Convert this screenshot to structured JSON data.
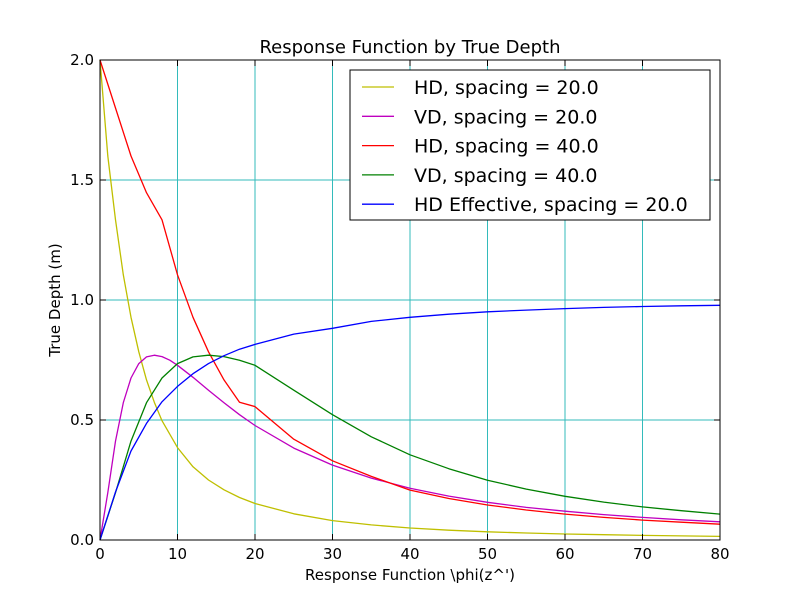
{
  "chart_data": {
    "type": "line",
    "title": "Response Function by True Depth",
    "xlabel": "Response Function \\phi(z^')",
    "ylabel": "True Depth (m)",
    "xlim": [
      0,
      80
    ],
    "ylim": [
      0,
      2.0
    ],
    "xticks": [
      "0",
      "10",
      "20",
      "30",
      "40",
      "50",
      "60",
      "70",
      "80"
    ],
    "yticks": [
      "0.0",
      "0.5",
      "1.0",
      "1.5",
      "2.0"
    ],
    "grid": true,
    "grid_color": "#33bbbb",
    "legend_position": "top-right",
    "series": [
      {
        "name": "HD, spacing = 20.0",
        "color": "#bfbf00",
        "x": [
          0,
          1,
          2,
          3,
          4,
          5,
          6,
          7,
          8,
          10,
          12,
          14,
          16,
          18,
          20,
          25,
          30,
          35,
          40,
          45,
          50,
          55,
          60,
          65,
          70,
          75,
          80
        ],
        "y": [
          2.0,
          1.6,
          1.334,
          1.105,
          0.928,
          0.784,
          0.667,
          0.574,
          0.497,
          0.385,
          0.305,
          0.25,
          0.209,
          0.177,
          0.152,
          0.109,
          0.081,
          0.063,
          0.05,
          0.041,
          0.034,
          0.029,
          0.025,
          0.022,
          0.019,
          0.017,
          0.015
        ]
      },
      {
        "name": "VD, spacing = 20.0",
        "color": "#bf00bf",
        "x": [
          0,
          1,
          2,
          3,
          4,
          5,
          6,
          7,
          8,
          9,
          10,
          12,
          14,
          16,
          18,
          20,
          25,
          30,
          35,
          40,
          45,
          50,
          55,
          60,
          65,
          70,
          75,
          80
        ],
        "y": [
          0.0,
          0.197,
          0.412,
          0.572,
          0.675,
          0.735,
          0.763,
          0.77,
          0.764,
          0.749,
          0.728,
          0.678,
          0.624,
          0.572,
          0.522,
          0.477,
          0.383,
          0.312,
          0.258,
          0.216,
          0.183,
          0.157,
          0.136,
          0.12,
          0.106,
          0.094,
          0.084,
          0.076
        ]
      },
      {
        "name": "HD, spacing = 40.0",
        "color": "#ff0000",
        "x": [
          0,
          2,
          4,
          6,
          8,
          10,
          12,
          14,
          16,
          18,
          20,
          25,
          30,
          35,
          40,
          45,
          50,
          55,
          60,
          65,
          70,
          75,
          80
        ],
        "y": [
          2.0,
          1.8,
          1.6,
          1.447,
          1.334,
          1.105,
          0.928,
          0.784,
          0.667,
          0.574,
          0.556,
          0.42,
          0.33,
          0.265,
          0.208,
          0.173,
          0.146,
          0.125,
          0.108,
          0.094,
          0.083,
          0.074,
          0.066
        ]
      },
      {
        "name": "VD, spacing = 40.0",
        "color": "#008000",
        "x": [
          0,
          2,
          4,
          6,
          8,
          10,
          12,
          14,
          16,
          18,
          20,
          25,
          30,
          35,
          40,
          45,
          50,
          55,
          60,
          65,
          70,
          75,
          80
        ],
        "y": [
          0.0,
          0.197,
          0.412,
          0.572,
          0.675,
          0.735,
          0.763,
          0.77,
          0.764,
          0.749,
          0.728,
          0.624,
          0.522,
          0.43,
          0.355,
          0.297,
          0.249,
          0.212,
          0.182,
          0.158,
          0.138,
          0.122,
          0.108
        ]
      },
      {
        "name": "HD Effective, spacing = 20.0",
        "color": "#0000ff",
        "x": [
          0,
          2,
          4,
          6,
          8,
          10,
          12,
          14,
          16,
          18,
          20,
          25,
          30,
          35,
          40,
          45,
          50,
          55,
          60,
          65,
          70,
          75,
          80
        ],
        "y": [
          0.0,
          0.2,
          0.371,
          0.486,
          0.576,
          0.64,
          0.693,
          0.735,
          0.768,
          0.795,
          0.815,
          0.858,
          0.882,
          0.911,
          0.928,
          0.941,
          0.951,
          0.958,
          0.964,
          0.969,
          0.973,
          0.976,
          0.978
        ]
      }
    ]
  }
}
